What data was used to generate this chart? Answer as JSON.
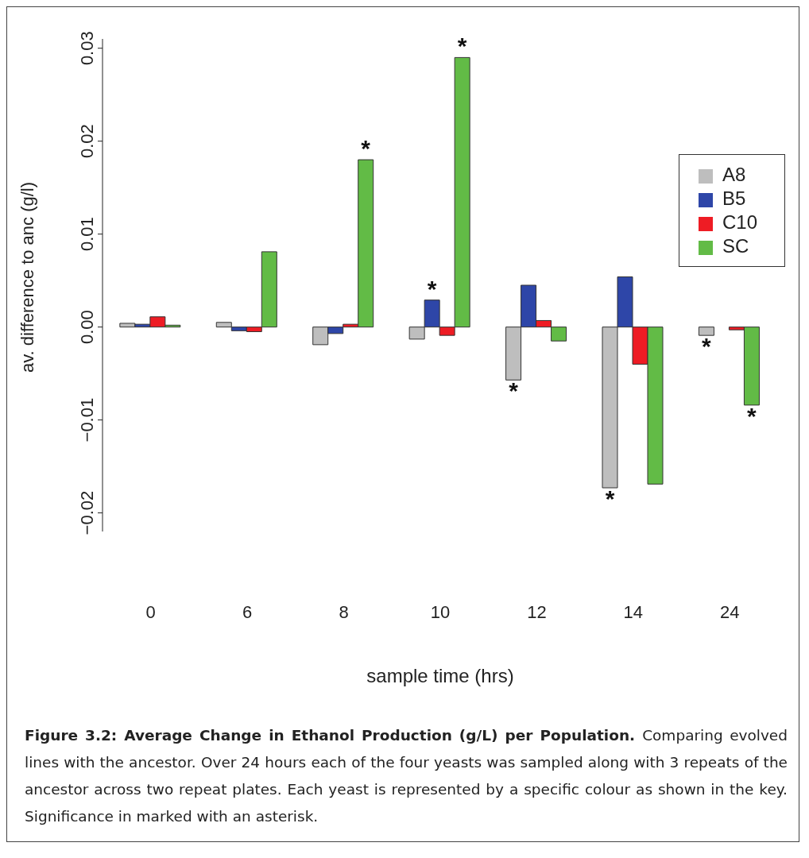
{
  "chart_data": {
    "type": "bar",
    "xlabel": "sample time (hrs)",
    "ylabel": "av. difference to anc (g/l)",
    "categories": [
      "0",
      "6",
      "8",
      "10",
      "12",
      "14",
      "24"
    ],
    "series": [
      {
        "name": "A8",
        "color": "#bebebe",
        "values": [
          0.0004,
          0.0005,
          -0.0019,
          -0.0013,
          -0.0057,
          -0.0173,
          -0.0009
        ],
        "value_labels": [
          null,
          null,
          null,
          null,
          "*",
          "*",
          "*"
        ]
      },
      {
        "name": "B5",
        "color": "#2e46a8",
        "values": [
          0.0003,
          -0.0004,
          -0.0007,
          0.0029,
          0.0045,
          0.0054,
          0
        ],
        "value_labels": [
          null,
          null,
          null,
          "*",
          null,
          null,
          null
        ]
      },
      {
        "name": "C10",
        "color": "#ee1c24",
        "values": [
          0.0011,
          -0.0005,
          0.0003,
          -0.0009,
          0.0007,
          -0.004,
          -0.0003
        ]
      },
      {
        "name": "SC",
        "color": "#62bb46",
        "values": [
          0.0002,
          0.0081,
          0.018,
          0.029,
          -0.0015,
          -0.0169,
          -0.0084
        ],
        "value_labels": [
          null,
          null,
          "*",
          "*",
          null,
          null,
          "*"
        ]
      }
    ],
    "ylim": [
      -0.022,
      0.031
    ],
    "yticks": [
      {
        "value": -0.02,
        "label": "−0.02"
      },
      {
        "value": -0.01,
        "label": "−0.01"
      },
      {
        "value": 0,
        "label": "0.00"
      },
      {
        "value": 0.01,
        "label": "0.01"
      },
      {
        "value": 0.02,
        "label": "0.02"
      },
      {
        "value": 0.03,
        "label": "0.03"
      }
    ],
    "legend": "top right",
    "grid": false,
    "annotations": [
      "Figure 3.2: Average Change in Ethanol Production (g/L) per Population.",
      "Comparing evolved lines with the ancestor. Over 24 hours each of the four yeasts was sampled along with 3 repeats of the ancestor across two repeat plates. Each yeast is represented by a specific colour as shown in the key. Significance in marked with an asterisk."
    ]
  }
}
